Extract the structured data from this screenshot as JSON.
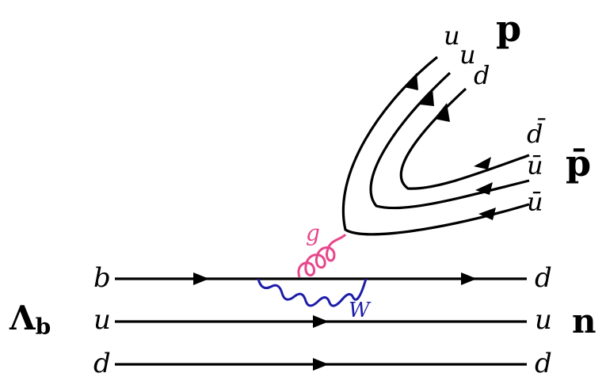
{
  "diagram": {
    "baryons": {
      "initial": "Λ",
      "initial_sub": "b",
      "final_neutron": "n",
      "proton": "p",
      "antiproton": "p̄"
    },
    "quarks": {
      "left": [
        "b",
        "u",
        "d"
      ],
      "right": [
        "d",
        "u",
        "d"
      ],
      "proton": [
        "u",
        "u",
        "d"
      ],
      "antiproton": [
        "d̄",
        "ū",
        "ū"
      ]
    },
    "bosons": {
      "gluon": "g",
      "w": "W"
    },
    "colors": {
      "line": "#000000",
      "gluon": "#e8468c",
      "w_boson": "#1c1ca8"
    }
  }
}
